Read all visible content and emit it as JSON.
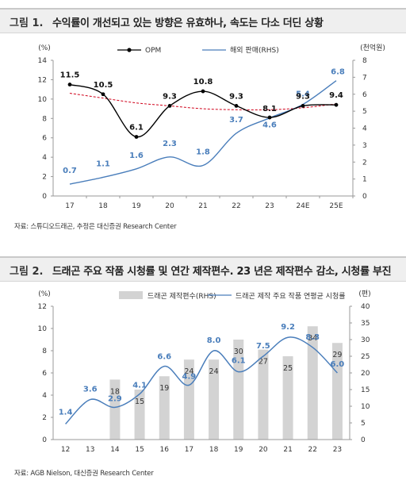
{
  "figures": [
    {
      "number": "그림 1.",
      "title": "수익률이 개선되고 있는 방향은 유효하나, 속도는 다소 더딘 상황",
      "source": "자료: 스튜디오드래곤, 추정은 대신증권 Research Center"
    },
    {
      "number": "그림 2.",
      "title": "드래곤 주요 작품 시청률 및 연간 제작편수. 23 년은 제작편수 감소, 시청률 부진",
      "source": "자료: AGB Nielson, 대신증권 Research Center"
    }
  ],
  "chart_data": [
    {
      "type": "line",
      "categories": [
        "17",
        "18",
        "19",
        "20",
        "21",
        "22",
        "23",
        "24E",
        "25E"
      ],
      "series": [
        {
          "name": "OPM",
          "axis": "left",
          "color": "#000000",
          "marker": "circle",
          "values": [
            11.5,
            10.5,
            6.1,
            9.3,
            10.8,
            9.3,
            8.1,
            9.3,
            9.4
          ],
          "labels": [
            "11.5",
            "10.5",
            "6.1",
            "9.3",
            "10.8",
            "9.3",
            "8.1",
            "9.3",
            "9.4"
          ]
        },
        {
          "name": "해외 판매(RHS)",
          "axis": "right",
          "color": "#4a7ebb",
          "values": [
            0.7,
            1.1,
            1.6,
            2.3,
            1.8,
            3.7,
            4.6,
            5.4,
            6.8
          ],
          "labels": [
            "0.7",
            "1.1",
            "1.6",
            "2.3",
            "1.8",
            "3.7",
            "4.6",
            "5.4",
            "6.8"
          ]
        }
      ],
      "trendline": {
        "color": "#d0021b",
        "style": "dashed",
        "values": [
          10.6,
          10.1,
          9.6,
          9.3,
          9.0,
          8.9,
          8.9,
          9.1,
          9.5
        ]
      },
      "left_axis": {
        "unit": "(%)",
        "min": 0,
        "max": 14,
        "ticks": [
          "0",
          "2",
          "4",
          "6",
          "8",
          "10",
          "12",
          "14"
        ]
      },
      "right_axis": {
        "unit": "(천억원)",
        "min": 0,
        "max": 8,
        "ticks": [
          "0",
          "1",
          "2",
          "3",
          "4",
          "5",
          "6",
          "7",
          "8"
        ]
      },
      "legend": {
        "position": "top-center"
      },
      "grid": false
    },
    {
      "type": "bar",
      "categories": [
        "12",
        "13",
        "14",
        "15",
        "16",
        "17",
        "18",
        "19",
        "20",
        "21",
        "22",
        "23"
      ],
      "series": [
        {
          "name": "드래곤 제작편수(RHS)",
          "axis": "right",
          "kind": "bar",
          "color": "#d3d3d3",
          "values": [
            null,
            null,
            18,
            15,
            19,
            24,
            24,
            30,
            27,
            25,
            34,
            29
          ],
          "labels": [
            "",
            "",
            "18",
            "15",
            "19",
            "24",
            "24",
            "30",
            "27",
            "25",
            "34",
            "29"
          ]
        },
        {
          "name": "드래곤 제작 주요 작품 연평균 시청률",
          "axis": "left",
          "kind": "line",
          "color": "#4a7ebb",
          "values": [
            1.4,
            3.6,
            2.9,
            4.1,
            6.6,
            4.9,
            8.0,
            6.1,
            7.5,
            9.2,
            8.3,
            6.0
          ],
          "labels": [
            "1.4",
            "3.6",
            "2.9",
            "4.1",
            "6.6",
            "4.9",
            "8.0",
            "6.1",
            "7.5",
            "9.2",
            "8.3",
            "6.0"
          ]
        }
      ],
      "left_axis": {
        "unit": "(%)",
        "min": 0,
        "max": 12,
        "ticks": [
          "0",
          "2",
          "4",
          "6",
          "8",
          "10",
          "12"
        ]
      },
      "right_axis": {
        "unit": "(편)",
        "min": 0,
        "max": 40,
        "ticks": [
          "0",
          "5",
          "10",
          "15",
          "20",
          "25",
          "30",
          "35",
          "40"
        ]
      },
      "legend": {
        "position": "top-center"
      },
      "grid": false
    }
  ]
}
